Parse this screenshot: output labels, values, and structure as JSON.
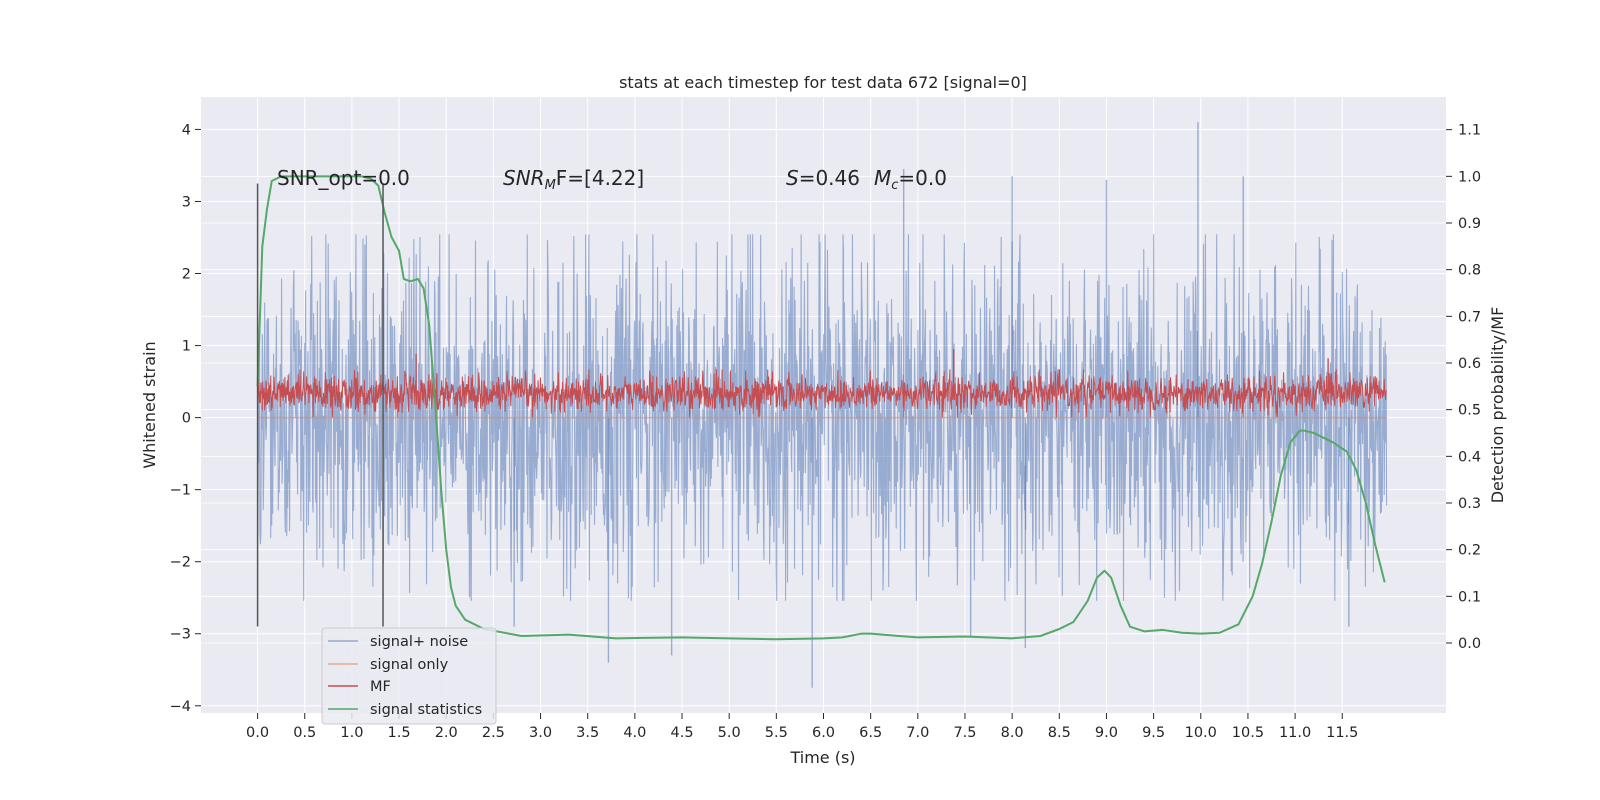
{
  "chart_data": {
    "type": "line",
    "title": "stats at each timestep for test data 672 [signal=0]",
    "xlabel": "Time (s)",
    "ylabel": "Whitened strain",
    "y2label": "Detection probability/MF",
    "xlim": [
      -0.6,
      12.6
    ],
    "ylim": [
      -4.1,
      4.45
    ],
    "y2lim": [
      -0.15,
      1.17
    ],
    "x_ticks": [
      "0.0",
      "0.5",
      "1.0",
      "1.5",
      "2.0",
      "2.5",
      "3.0",
      "3.5",
      "4.0",
      "4.5",
      "5.0",
      "5.5",
      "6.0",
      "6.5",
      "7.0",
      "7.5",
      "8.0",
      "8.5",
      "9.0",
      "9.5",
      "10.0",
      "10.5",
      "11.0",
      "11.5"
    ],
    "y_ticks": [
      "4",
      "3",
      "2",
      "1",
      "0",
      "−1",
      "−2",
      "−3",
      "−4"
    ],
    "y2_ticks": [
      "1.1",
      "1.0",
      "0.9",
      "0.8",
      "0.7",
      "0.6",
      "0.5",
      "0.4",
      "0.3",
      "0.2",
      "0.1",
      "0.0"
    ],
    "vlines": [
      0.0,
      1.33
    ],
    "annotations": {
      "snr_opt": "SNR_opt=0.0",
      "snr_mf_main": "SNR",
      "snr_mf_sub": "M",
      "snr_mf_rest": "F=[4.22]",
      "s_var": "S",
      "s_val": "=0.46",
      "mc_var": "M",
      "mc_sub": "c",
      "mc_val": "=0.0"
    },
    "grid": true,
    "legend_position": "lower-left",
    "series": [
      {
        "name": "signal+ noise",
        "color": "#4c72b0",
        "axis": "left",
        "kind": "noise",
        "x_range": [
          0,
          11.97
        ],
        "typical_range": [
          -1.75,
          1.75
        ],
        "spikes": [
          {
            "x": 8.14,
            "y": -3.2
          },
          {
            "x": 9.97,
            "y": 4.1
          },
          {
            "x": 5.88,
            "y": -3.75
          },
          {
            "x": 3.72,
            "y": -3.4
          },
          {
            "x": 4.39,
            "y": -3.3
          },
          {
            "x": 6.85,
            "y": 3.45
          },
          {
            "x": 8.0,
            "y": 3.35
          },
          {
            "x": 10.45,
            "y": 3.35
          },
          {
            "x": 2.72,
            "y": -2.9
          },
          {
            "x": 7.56,
            "y": -3.05
          },
          {
            "x": 11.57,
            "y": -2.9
          },
          {
            "x": 9.0,
            "y": 3.3
          }
        ]
      },
      {
        "name": "signal only",
        "color": "#dd8452",
        "axis": "left",
        "kind": "flat",
        "value": 0
      },
      {
        "name": "MF",
        "color": "#c44e52",
        "axis": "right",
        "kind": "noise",
        "x_range": [
          0,
          11.97
        ],
        "typical_range": [
          0.5,
          0.57
        ],
        "spikes": [
          {
            "x": 7.38,
            "y": 0.63
          },
          {
            "x": 1.68,
            "y": 0.62
          },
          {
            "x": 11.35,
            "y": 0.61
          }
        ]
      },
      {
        "name": "signal statistics",
        "color": "#55a868",
        "axis": "right",
        "kind": "line",
        "x": [
          0.0,
          0.05,
          0.1,
          0.15,
          0.25,
          0.45,
          0.8,
          1.1,
          1.2,
          1.28,
          1.35,
          1.42,
          1.5,
          1.55,
          1.62,
          1.7,
          1.76,
          1.82,
          1.88,
          1.95,
          2.0,
          2.05,
          2.1,
          2.2,
          2.4,
          2.8,
          3.3,
          3.8,
          4.5,
          5.0,
          5.5,
          6.0,
          6.2,
          6.4,
          6.5,
          6.8,
          7.0,
          7.5,
          8.0,
          8.3,
          8.5,
          8.65,
          8.8,
          8.9,
          8.98,
          9.05,
          9.15,
          9.25,
          9.4,
          9.6,
          9.8,
          10.0,
          10.2,
          10.4,
          10.55,
          10.65,
          10.75,
          10.85,
          10.95,
          11.05,
          11.1,
          11.2,
          11.4,
          11.55,
          11.65,
          11.75,
          11.85,
          11.95
        ],
        "y": [
          0.55,
          0.85,
          0.93,
          0.99,
          1.0,
          1.0,
          1.0,
          1.0,
          0.995,
          0.98,
          0.92,
          0.87,
          0.84,
          0.78,
          0.775,
          0.78,
          0.76,
          0.68,
          0.52,
          0.32,
          0.2,
          0.12,
          0.08,
          0.05,
          0.03,
          0.015,
          0.018,
          0.01,
          0.012,
          0.01,
          0.008,
          0.01,
          0.012,
          0.02,
          0.02,
          0.015,
          0.012,
          0.014,
          0.01,
          0.015,
          0.03,
          0.045,
          0.09,
          0.14,
          0.155,
          0.14,
          0.08,
          0.035,
          0.025,
          0.028,
          0.022,
          0.02,
          0.022,
          0.04,
          0.1,
          0.17,
          0.26,
          0.36,
          0.43,
          0.455,
          0.455,
          0.45,
          0.43,
          0.41,
          0.37,
          0.3,
          0.21,
          0.13
        ]
      }
    ]
  }
}
